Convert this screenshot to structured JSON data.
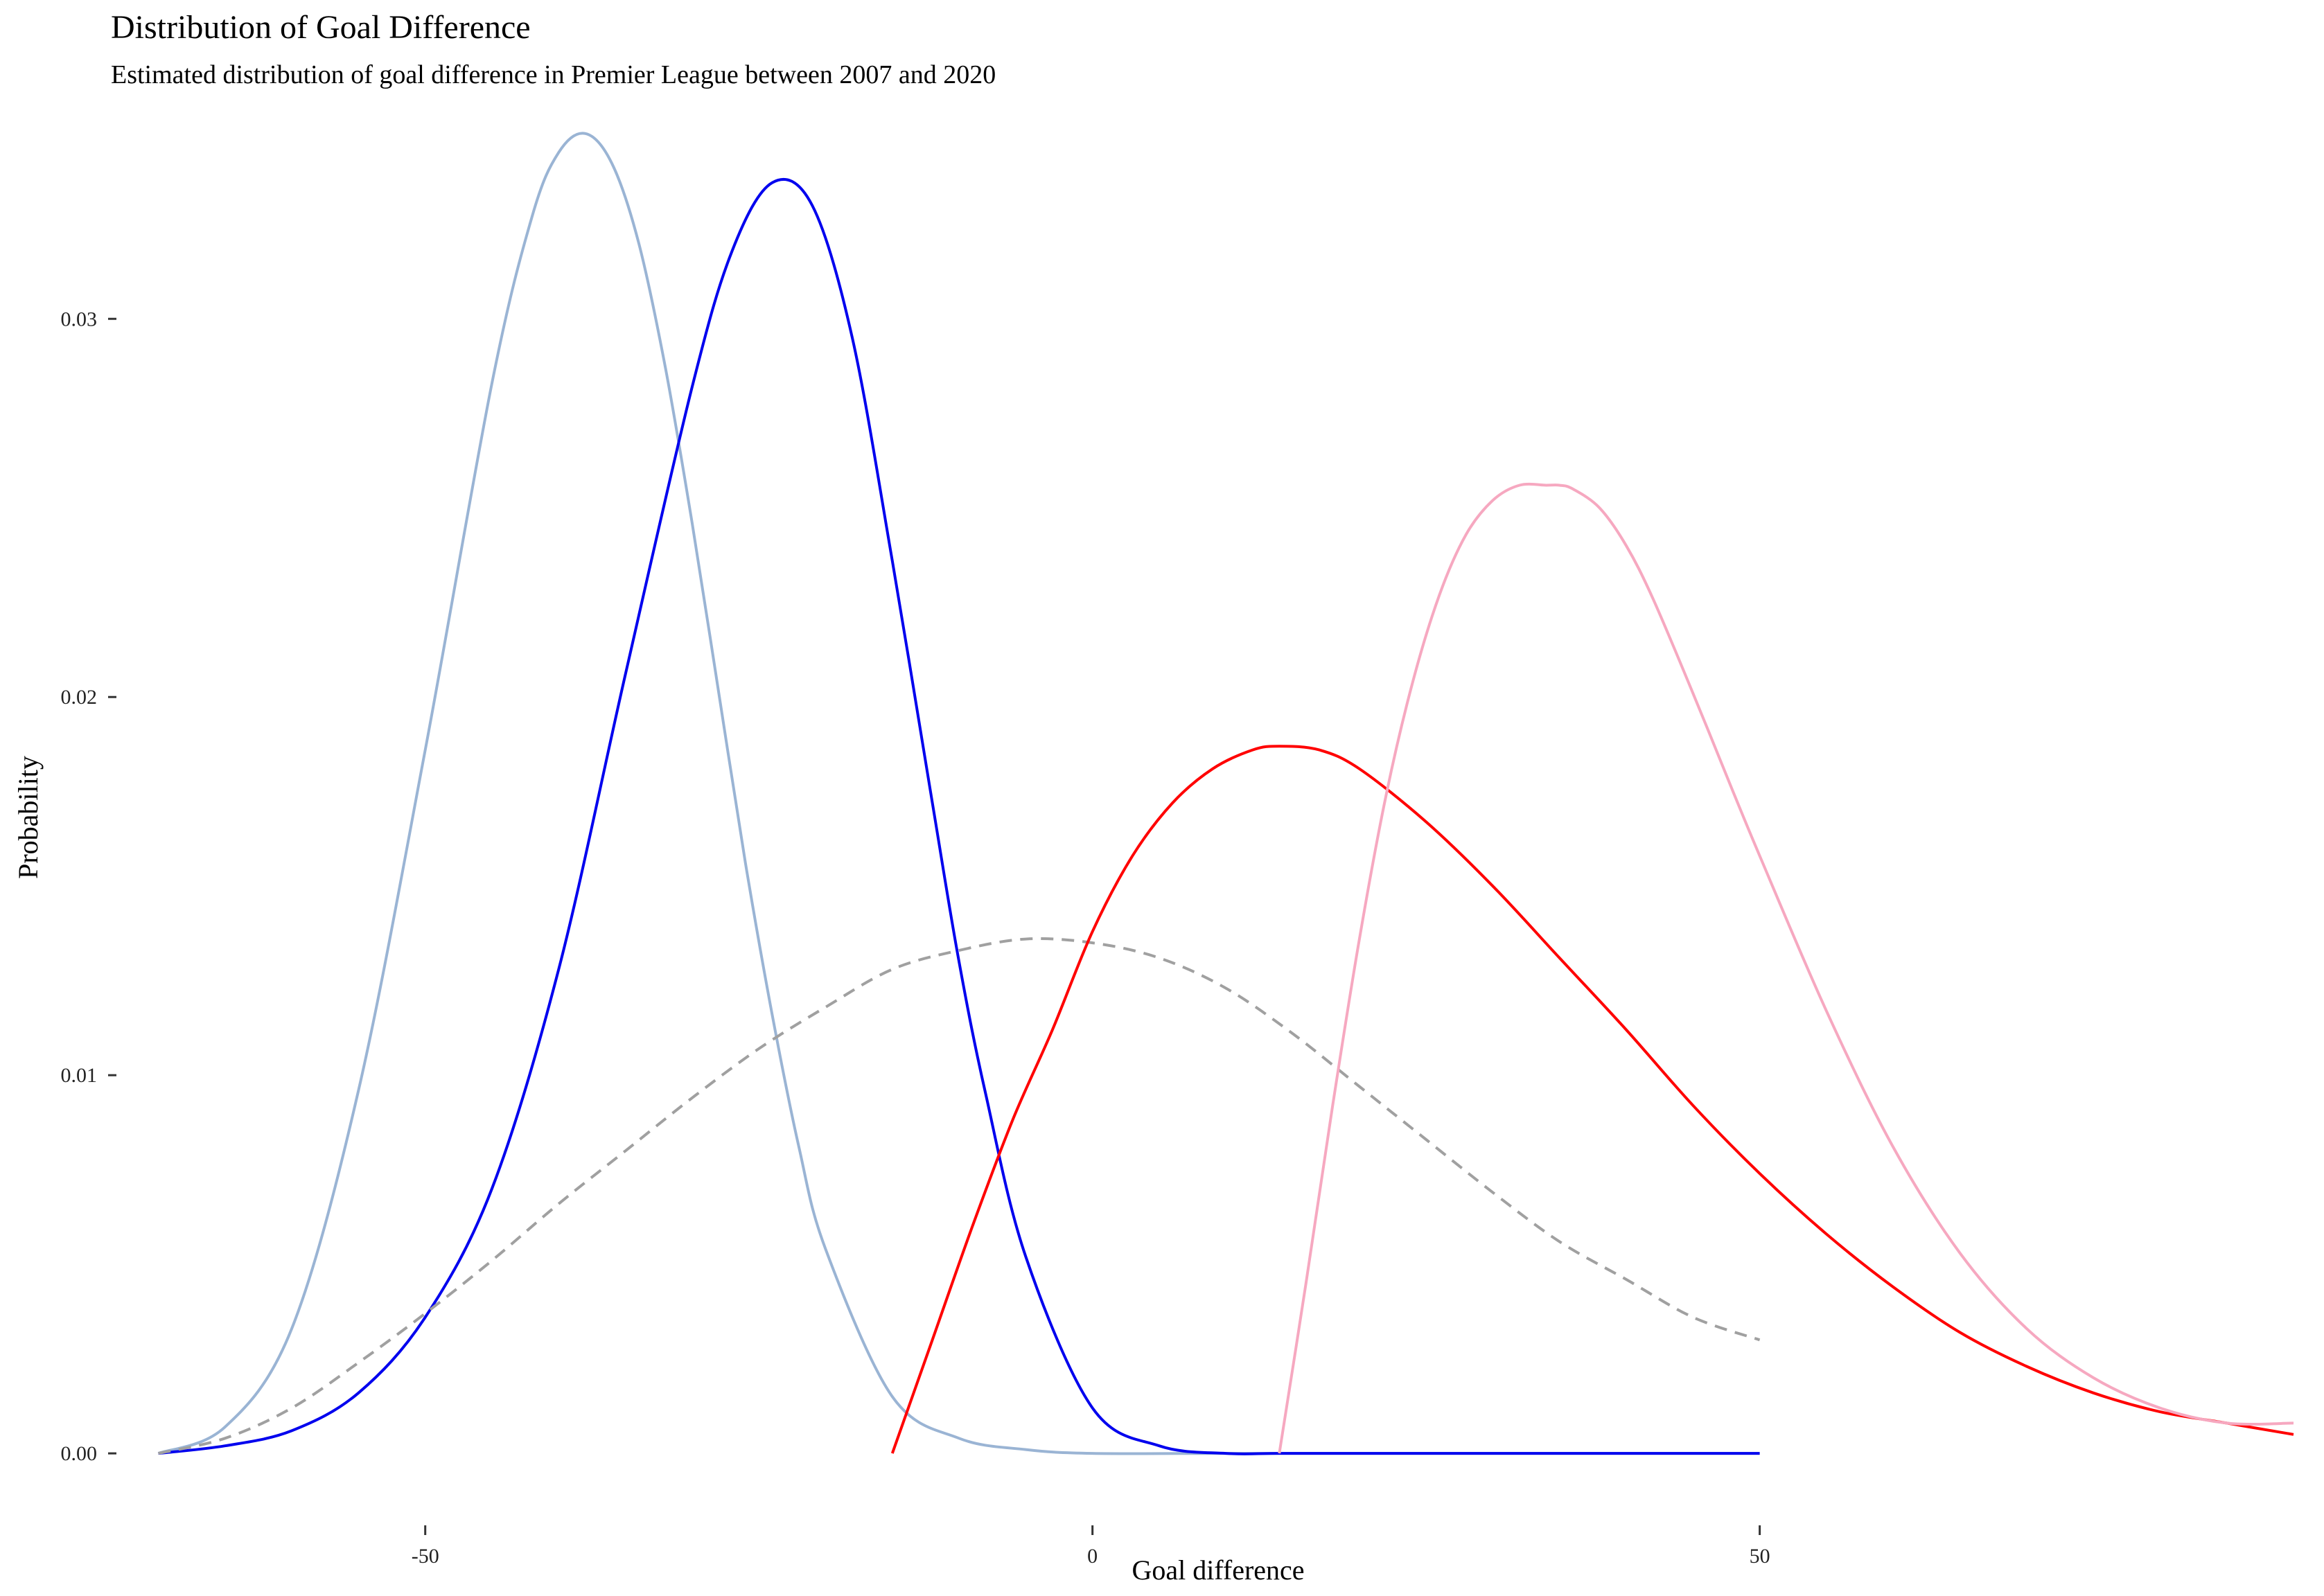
{
  "chart_data": {
    "type": "line",
    "title": "Distribution of Goal Difference",
    "subtitle": "Estimated distribution of goal difference in Premier League between 2007 and 2020",
    "xlabel": "Goal difference",
    "ylabel": "Probability",
    "xlim": [
      -72,
      90
    ],
    "ylim": [
      -0.0015,
      0.0355
    ],
    "x_ticks": [
      -50,
      0,
      50
    ],
    "x_tick_labels": [
      "-50",
      "0",
      "50"
    ],
    "y_ticks": [
      0,
      0.01,
      0.02,
      0.03
    ],
    "y_tick_labels": [
      "0.00",
      "0.01",
      "0.02",
      "0.03"
    ],
    "grid": false,
    "legend": "none",
    "series": [
      {
        "color": "#9ab4d4",
        "dash": false,
        "x": [
          -70,
          -65,
          -60,
          -55,
          -50,
          -45,
          -42,
          -40,
          -38,
          -36,
          -34,
          -32,
          -30,
          -28,
          -26,
          -24,
          -22,
          -20,
          -15,
          -10,
          -5,
          0,
          10,
          20,
          30,
          40,
          50
        ],
        "y": [
          0.0,
          0.0007,
          0.0033,
          0.0096,
          0.0186,
          0.0283,
          0.0327,
          0.0344,
          0.0349,
          0.0341,
          0.032,
          0.0287,
          0.0246,
          0.0201,
          0.0156,
          0.0116,
          0.0081,
          0.0054,
          0.0015,
          0.0004,
          0.0001,
          0.0,
          0.0,
          0.0,
          0.0,
          0.0,
          0.0
        ]
      },
      {
        "color": "#0000ee",
        "dash": false,
        "x": [
          -70,
          -65,
          -60,
          -55,
          -50,
          -45,
          -40,
          -35,
          -30,
          -27,
          -24,
          -21,
          -18,
          -15,
          -12,
          -10,
          -8,
          -5,
          0,
          5,
          10,
          14,
          20,
          30,
          40,
          50
        ],
        "y": [
          0.0,
          0.0002,
          0.0006,
          0.0016,
          0.0036,
          0.007,
          0.0128,
          0.0206,
          0.0282,
          0.0318,
          0.0336,
          0.033,
          0.0295,
          0.0236,
          0.0172,
          0.013,
          0.0095,
          0.0052,
          0.0012,
          0.0002,
          0.0,
          0.0,
          0.0,
          0.0,
          0.0,
          0.0
        ]
      },
      {
        "color": "#a0a0a0",
        "dash": true,
        "x": [
          -70,
          -65,
          -60,
          -55,
          -50,
          -45,
          -40,
          -35,
          -30,
          -25,
          -20,
          -15,
          -10,
          -5,
          0,
          5,
          10,
          15,
          20,
          25,
          30,
          35,
          40,
          45,
          50
        ],
        "y": [
          0.0,
          0.0004,
          0.0012,
          0.0024,
          0.0037,
          0.0051,
          0.0066,
          0.008,
          0.0094,
          0.0107,
          0.0118,
          0.0128,
          0.0133,
          0.0136,
          0.0135,
          0.0131,
          0.0123,
          0.0111,
          0.0097,
          0.0083,
          0.0069,
          0.0056,
          0.0046,
          0.0036,
          0.003
        ]
      },
      {
        "color": "#ff0000",
        "dash": false,
        "x": [
          -15,
          -12,
          -9,
          -6,
          -3,
          0,
          3,
          6,
          9,
          12,
          14,
          17,
          20,
          25,
          30,
          35,
          40,
          45,
          50,
          55,
          60,
          65,
          70,
          75,
          80,
          85,
          90
        ],
        "y": [
          0.0,
          0.003,
          0.006,
          0.0088,
          0.0112,
          0.0138,
          0.0158,
          0.0172,
          0.0181,
          0.0186,
          0.0187,
          0.0186,
          0.0181,
          0.0167,
          0.015,
          0.0131,
          0.0112,
          0.0092,
          0.0074,
          0.0058,
          0.0044,
          0.0032,
          0.0023,
          0.0016,
          0.0011,
          0.0008,
          0.0005
        ]
      },
      {
        "color": "#f6a8c0",
        "dash": false,
        "x": [
          14,
          16,
          18,
          20,
          22,
          24,
          26,
          28,
          30,
          32,
          34,
          35,
          36,
          38,
          40,
          42,
          45,
          48,
          50,
          55,
          60,
          65,
          70,
          75,
          80,
          85,
          90
        ],
        "y": [
          0.0,
          0.0045,
          0.0092,
          0.0136,
          0.0174,
          0.0204,
          0.0227,
          0.0243,
          0.0252,
          0.0256,
          0.0256,
          0.0256,
          0.0255,
          0.025,
          0.024,
          0.0226,
          0.0201,
          0.0175,
          0.0158,
          0.0117,
          0.0081,
          0.0053,
          0.0033,
          0.002,
          0.0012,
          0.0008,
          0.0008
        ]
      }
    ]
  }
}
